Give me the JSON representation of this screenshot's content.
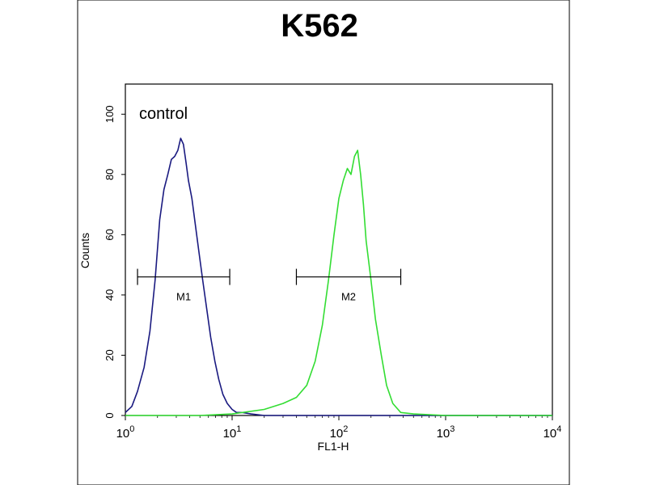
{
  "chart_data": {
    "type": "line",
    "title": "K562",
    "xlabel": "FL1-H",
    "ylabel": "Counts",
    "xscale": "log",
    "xlim": [
      1,
      10000
    ],
    "ylim": [
      0,
      110
    ],
    "grid": false,
    "x_ticks": [
      {
        "value": 1,
        "base": "10",
        "exp": "0"
      },
      {
        "value": 10,
        "base": "10",
        "exp": "1"
      },
      {
        "value": 100,
        "base": "10",
        "exp": "2"
      },
      {
        "value": 1000,
        "base": "10",
        "exp": "3"
      },
      {
        "value": 10000,
        "base": "10",
        "exp": "4"
      }
    ],
    "y_ticks": [
      0,
      20,
      40,
      60,
      80,
      100
    ],
    "annotation": "control",
    "series": [
      {
        "color": "#1a1a80",
        "x": [
          1.0,
          1.15,
          1.3,
          1.5,
          1.7,
          1.9,
          2.1,
          2.3,
          2.5,
          2.7,
          2.9,
          3.1,
          3.3,
          3.5,
          3.7,
          3.9,
          4.2,
          4.5,
          4.9,
          5.3,
          5.8,
          6.3,
          6.9,
          7.5,
          8.2,
          9.0,
          10.0,
          11.0,
          12.5,
          15.0,
          20.0,
          30.0,
          50.0,
          100.0,
          1000.0,
          10000.0
        ],
        "y": [
          1,
          3,
          8,
          16,
          28,
          45,
          65,
          75,
          80,
          85,
          86,
          88,
          92,
          90,
          84,
          78,
          72,
          64,
          54,
          45,
          35,
          26,
          18,
          12,
          7,
          4,
          2,
          1,
          1,
          0.5,
          0,
          0,
          0,
          0,
          0,
          0
        ]
      },
      {
        "color": "#33dd33",
        "x": [
          1.0,
          5.0,
          10.0,
          20.0,
          30.0,
          40.0,
          50.0,
          60.0,
          70.0,
          80.0,
          90.0,
          100.0,
          110.0,
          120.0,
          130.0,
          140.0,
          150.0,
          160.0,
          170.0,
          180.0,
          200.0,
          220.0,
          250.0,
          280.0,
          320.0,
          380.0,
          500.0,
          1000.0,
          10000.0
        ],
        "y": [
          0,
          0,
          0.5,
          2,
          4,
          6,
          10,
          18,
          30,
          45,
          60,
          72,
          78,
          82,
          80,
          86,
          88,
          80,
          70,
          58,
          45,
          32,
          20,
          10,
          4,
          1,
          0.5,
          0,
          0
        ]
      }
    ],
    "gates": [
      {
        "label": "M1",
        "x_start": 1.3,
        "x_end": 9.5,
        "y": 46
      },
      {
        "label": "M2",
        "x_start": 40,
        "x_end": 380,
        "y": 46
      }
    ]
  }
}
